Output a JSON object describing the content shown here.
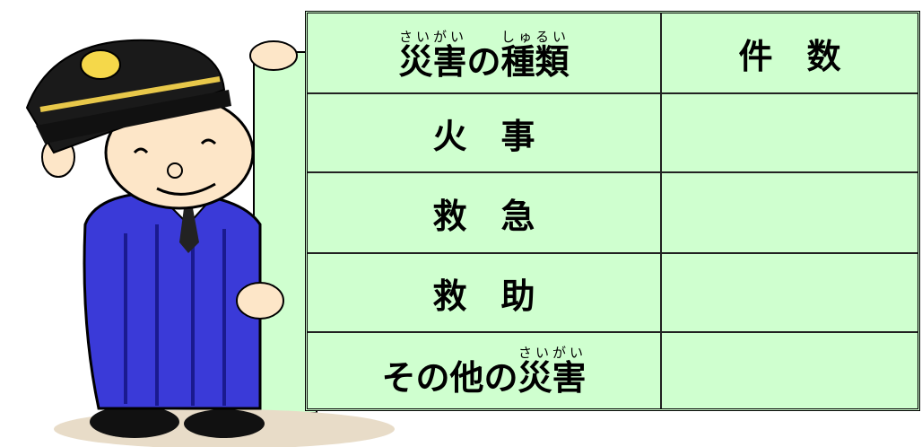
{
  "table": {
    "header": {
      "type": [
        {
          "base": "災害",
          "ruby": "さいがい"
        },
        {
          "base": "の"
        },
        {
          "base": "種類",
          "ruby": "しゅるい"
        }
      ],
      "count": "件　数"
    },
    "rows": [
      {
        "type": [
          {
            "base": "火　事"
          }
        ]
      },
      {
        "type": [
          {
            "base": "救　急"
          }
        ]
      },
      {
        "type": [
          {
            "base": "救　助"
          }
        ]
      },
      {
        "type": [
          {
            "base": "その他の"
          },
          {
            "base": "災害",
            "ruby": "さいがい"
          }
        ]
      }
    ]
  }
}
